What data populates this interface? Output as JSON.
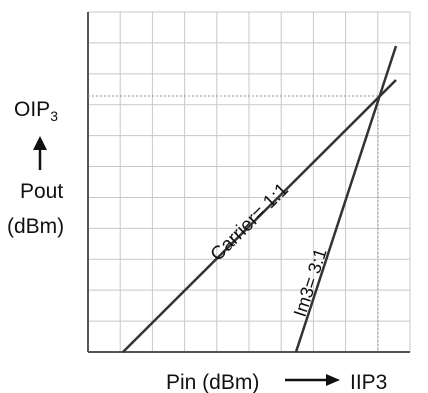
{
  "labels": {
    "oip3_main": "OIP",
    "oip3_sub": "3",
    "pout": "Pout",
    "pout_unit": "(dBm)",
    "pin": "Pin (dBm)",
    "iip3": "IIP3",
    "carrier": "Carrier= 1:1",
    "im3": "Im3= 3:1"
  },
  "colors": {
    "grid": "#c8c8c8",
    "axis": "#555555",
    "line": "#333333",
    "text": "#111111",
    "intercept_guide": "#999999"
  },
  "grid": {
    "columns": 10,
    "rows": 11
  },
  "lines": {
    "carrier": {
      "slope_ratio": "1:1"
    },
    "im3": {
      "slope_ratio": "3:1"
    }
  }
}
